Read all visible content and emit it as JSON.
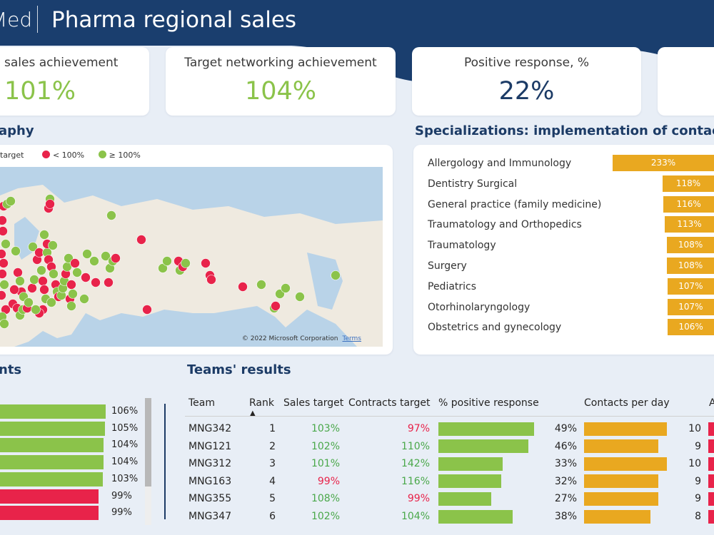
{
  "header": {
    "brand": "Med",
    "title": "Pharma regional sales"
  },
  "kpis": [
    {
      "label": "sales achievement",
      "value": "101%",
      "color": "#8bc34a"
    },
    {
      "label": "Target networking achievement",
      "value": "104%",
      "color": "#8bc34a"
    },
    {
      "label": "Positive response, %",
      "value": "22%",
      "color": "#1c3b66"
    }
  ],
  "geography": {
    "title": "aphy",
    "legend": [
      "target",
      "< 100%",
      "≥ 100%"
    ],
    "legend_colors": {
      "target": "#1c3b66",
      "below": "#e8234a",
      "above": "#8bc34a"
    },
    "copyright": "© 2022 Microsoft Corporation",
    "terms": "Terms"
  },
  "specializations": {
    "title": "Specializations: implementation of contact/s",
    "bar_color": "#e9a820",
    "items": [
      {
        "label": "Allergology and Immunology",
        "value": 233,
        "text": "233%"
      },
      {
        "label": "Dentistry Surgical",
        "value": 118,
        "text": "118%"
      },
      {
        "label": "General practice (family medicine)",
        "value": 116,
        "text": "116%"
      },
      {
        "label": "Traumatology and Orthopedics",
        "value": 113,
        "text": "113%"
      },
      {
        "label": "Traumatology",
        "value": 108,
        "text": "108%"
      },
      {
        "label": "Surgery",
        "value": 108,
        "text": "108%"
      },
      {
        "label": "Pediatrics",
        "value": 107,
        "text": "107%"
      },
      {
        "label": "Otorhinolaryngology",
        "value": 107,
        "text": "107%"
      },
      {
        "label": "Obstetrics and gynecology",
        "value": 106,
        "text": "106%"
      }
    ]
  },
  "agents": {
    "title": "nts",
    "items": [
      {
        "value": 106,
        "text": "106%",
        "color": "#8bc34a"
      },
      {
        "value": 105,
        "text": "105%",
        "color": "#8bc34a"
      },
      {
        "value": 104,
        "text": "104%",
        "color": "#8bc34a"
      },
      {
        "value": 104,
        "text": "104%",
        "color": "#8bc34a"
      },
      {
        "value": 103,
        "text": "103%",
        "color": "#8bc34a"
      },
      {
        "value": 99,
        "text": "99%",
        "color": "#e8234a"
      },
      {
        "value": 99,
        "text": "99%",
        "color": "#e8234a"
      }
    ]
  },
  "teams": {
    "title": "Teams' results",
    "columns": [
      "Team",
      "Rank",
      "Sales target",
      "Contracts target",
      "% positive response",
      "Contacts per day",
      "A"
    ],
    "sort_arrow": "▲",
    "colors": {
      "good": "#4aa84a",
      "bad": "#e8234a",
      "positive_bar": "#8bc34a",
      "contacts_bar": "#e9a820",
      "last_bar": "#e8234a"
    },
    "rows": [
      {
        "team": "MNG342",
        "rank": "1",
        "sales": "103%",
        "sales_ok": true,
        "contracts": "97%",
        "contracts_ok": false,
        "positive": 49,
        "positive_text": "49%",
        "contacts": 10,
        "contacts_text": "10"
      },
      {
        "team": "MNG121",
        "rank": "2",
        "sales": "102%",
        "sales_ok": true,
        "contracts": "110%",
        "contracts_ok": true,
        "positive": 46,
        "positive_text": "46%",
        "contacts": 9,
        "contacts_text": "9"
      },
      {
        "team": "MNG312",
        "rank": "3",
        "sales": "101%",
        "sales_ok": true,
        "contracts": "142%",
        "contracts_ok": true,
        "positive": 33,
        "positive_text": "33%",
        "contacts": 10,
        "contacts_text": "10"
      },
      {
        "team": "MNG163",
        "rank": "4",
        "sales": "99%",
        "sales_ok": false,
        "contracts": "116%",
        "contracts_ok": true,
        "positive": 32,
        "positive_text": "32%",
        "contacts": 9,
        "contacts_text": "9"
      },
      {
        "team": "MNG355",
        "rank": "5",
        "sales": "108%",
        "sales_ok": true,
        "contracts": "99%",
        "contracts_ok": false,
        "positive": 27,
        "positive_text": "27%",
        "contacts": 9,
        "contacts_text": "9"
      },
      {
        "team": "MNG347",
        "rank": "6",
        "sales": "102%",
        "sales_ok": true,
        "contracts": "104%",
        "contracts_ok": true,
        "positive": 38,
        "positive_text": "38%",
        "contacts": 8,
        "contacts_text": "8"
      }
    ]
  }
}
